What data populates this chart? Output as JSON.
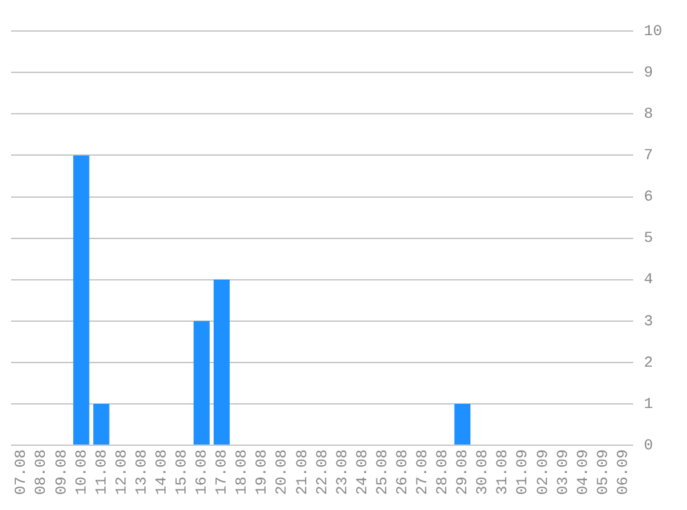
{
  "chart_data": {
    "type": "bar",
    "categories": [
      "07.08",
      "08.08",
      "09.08",
      "10.08",
      "11.08",
      "12.08",
      "13.08",
      "14.08",
      "15.08",
      "16.08",
      "17.08",
      "18.08",
      "19.08",
      "20.08",
      "21.08",
      "22.08",
      "23.08",
      "24.08",
      "25.08",
      "26.08",
      "27.08",
      "28.08",
      "29.08",
      "30.08",
      "31.08",
      "01.09",
      "02.09",
      "03.09",
      "04.09",
      "05.09",
      "06.09"
    ],
    "values": [
      0,
      0,
      0,
      7,
      1,
      0,
      0,
      0,
      0,
      3,
      4,
      0,
      0,
      0,
      0,
      0,
      0,
      0,
      0,
      0,
      0,
      0,
      1,
      0,
      0,
      0,
      0,
      0,
      0,
      0,
      0
    ],
    "color": "#1e90ff",
    "ylim": [
      0,
      10
    ],
    "yticks": [
      0,
      1,
      2,
      3,
      4,
      5,
      6,
      7,
      8,
      9,
      10
    ],
    "grid": "y",
    "legend": false
  }
}
